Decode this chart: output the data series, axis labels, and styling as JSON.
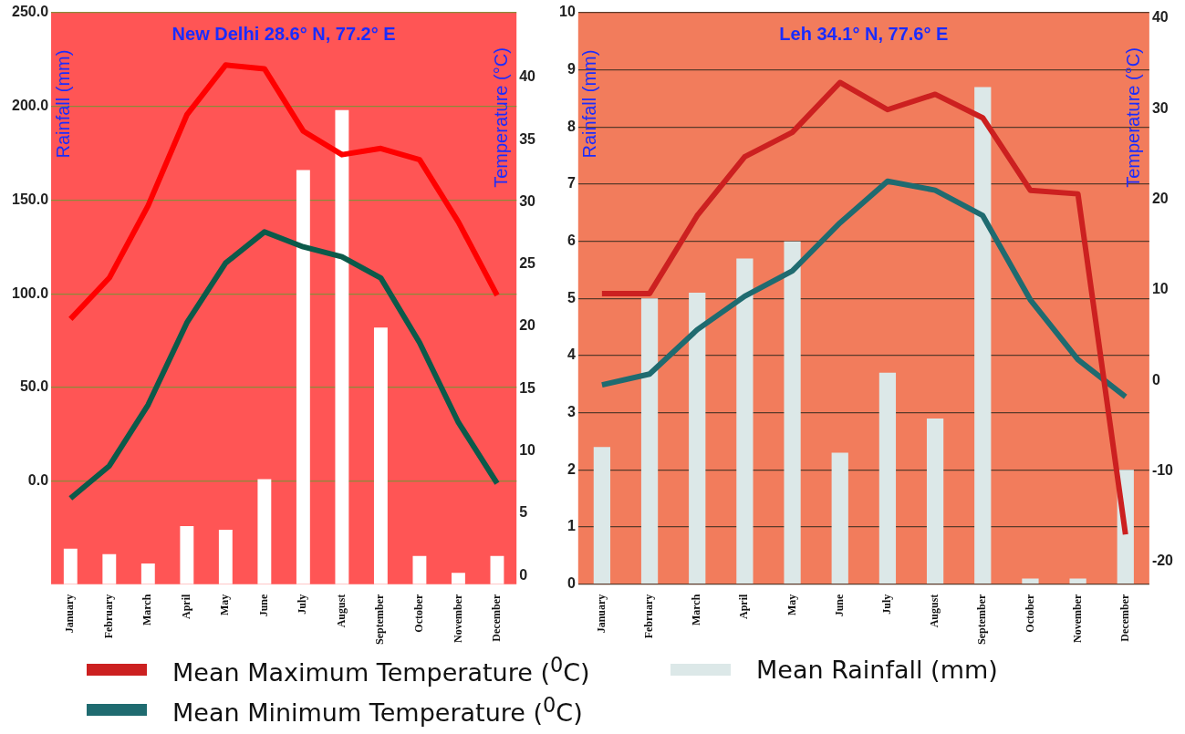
{
  "chart_data": [
    {
      "type": "bar",
      "title": "New Delhi 28.6° N, 77.2° E",
      "ylabel": "Rainfall (mm)",
      "y2label": "Temperature (°C)",
      "categories": [
        "January",
        "February",
        "March",
        "April",
        "May",
        "June",
        "July",
        "August",
        "September",
        "October",
        "November",
        "December"
      ],
      "series": [
        {
          "color": "#ffffff",
          "base": [
            -55,
            -55,
            -55,
            -55,
            -55,
            -55,
            -55,
            -55,
            -55,
            -55,
            -55,
            -55
          ],
          "values": [
            19,
            16,
            11,
            31,
            29,
            56,
            221,
            253,
            137,
            15,
            6,
            15
          ]
        },
        {
          "type": "line",
          "axis": "y2",
          "color": "#ff0000",
          "values": [
            20.6,
            23.9,
            29.7,
            37.0,
            41.0,
            40.7,
            35.7,
            33.8,
            34.3,
            33.4,
            28.4,
            22.5
          ]
        },
        {
          "type": "line",
          "axis": "y2",
          "color": "#0b5a4a",
          "values": [
            6.2,
            8.8,
            13.7,
            20.3,
            25.1,
            27.6,
            26.4,
            25.6,
            23.9,
            18.7,
            12.3,
            7.4
          ]
        }
      ],
      "ylim": [
        -55,
        250
      ],
      "yticks": [
        {
          "value": 0,
          "label": "0.0"
        },
        {
          "value": 50,
          "label": "50.0"
        },
        {
          "value": 100,
          "label": "100.0"
        },
        {
          "value": 150,
          "label": "150.0"
        },
        {
          "value": 200,
          "label": "200.0"
        },
        {
          "value": 250,
          "label": "250.0"
        }
      ],
      "y2lim": [
        -0.7,
        45.2
      ],
      "y2ticks": [
        0,
        5,
        10,
        15,
        20,
        25,
        30,
        35,
        40
      ],
      "grid": "y"
    },
    {
      "type": "bar",
      "title": "Leh 34.1° N, 77.6° E",
      "ylabel": "Rainfall (mm)",
      "y2label": "Temperature (°C)",
      "categories": [
        "January",
        "February",
        "March",
        "April",
        "May",
        "June",
        "July",
        "August",
        "September",
        "October",
        "November",
        "December"
      ],
      "series": [
        {
          "type": "line",
          "name": "Mean Maximum Temperature ($^{0}$C)",
          "axis": "y2",
          "color": "#cc2020",
          "values": [
            9.6,
            9.6,
            18.2,
            24.7,
            27.4,
            32.9,
            29.9,
            31.6,
            29.0,
            21.0,
            20.6,
            -17.0
          ]
        },
        {
          "type": "line",
          "name": "Mean Minimum Temperature ($^{0}$C)",
          "axis": "y2",
          "color": "#1f6b70",
          "values": [
            -0.5,
            0.7,
            5.6,
            9.3,
            12.1,
            17.4,
            22.0,
            21.0,
            18.2,
            8.9,
            2.3,
            -1.8
          ]
        },
        {
          "name": "Mean Rainfall (mm)",
          "color": "#dce8e8",
          "values": [
            2.4,
            5.0,
            5.1,
            5.7,
            6.0,
            2.3,
            3.7,
            2.9,
            8.7,
            0.1,
            0.1,
            2.0
          ]
        }
      ],
      "ylim": [
        0,
        10
      ],
      "yticks": [
        0,
        1,
        2,
        3,
        4,
        5,
        6,
        7,
        8,
        9,
        10
      ],
      "y2lim": [
        -22.5,
        40.6
      ],
      "y2ticks": [
        -20,
        -10,
        0,
        10,
        20,
        30,
        40
      ],
      "grid": "y",
      "legend": "bottom"
    }
  ]
}
